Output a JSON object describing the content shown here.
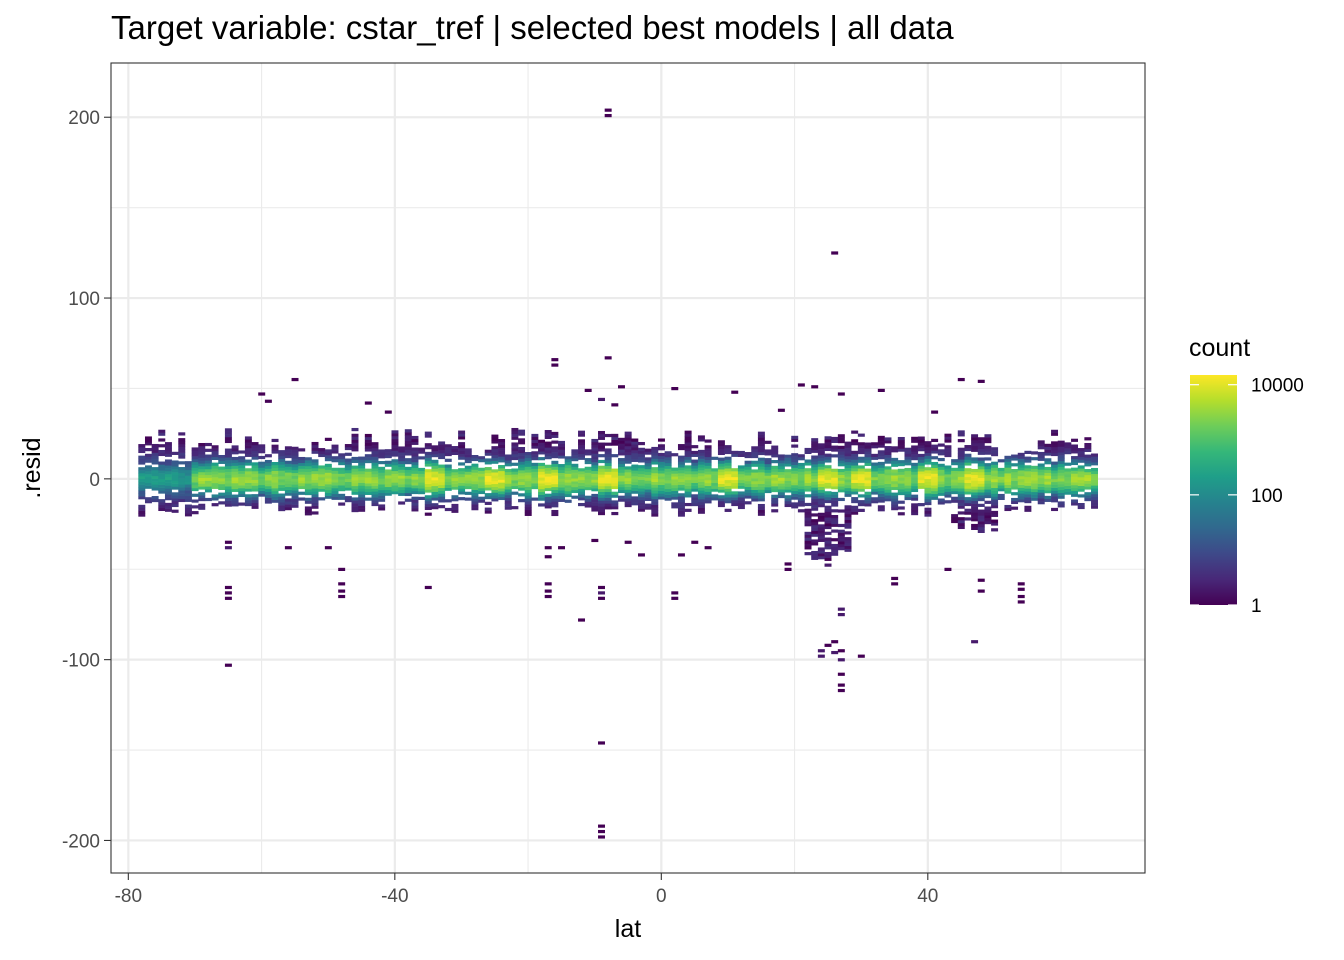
{
  "chart_data": {
    "type": "heatmap",
    "title": "Target variable: cstar_tref | selected best models | all data",
    "xlabel": "lat",
    "ylabel": ".resid",
    "xlim": [
      -82.6,
      72.6
    ],
    "ylim": [
      -218,
      230
    ],
    "x_ticks": [
      -80,
      -40,
      0,
      40
    ],
    "y_ticks": [
      200,
      100,
      0,
      -100,
      -200
    ],
    "x_tick_labels": [
      "-80",
      "-40",
      "0",
      "40"
    ],
    "y_tick_labels": [
      "200",
      "100",
      "0",
      "-100",
      "-200"
    ],
    "grid": true,
    "bin_width": [
      1,
      1.6
    ],
    "data_lat_range": [
      -78,
      65
    ],
    "legend": {
      "title": "count",
      "scale": "log10",
      "range": [
        1,
        15000
      ],
      "breaks": [
        1,
        100,
        10000
      ],
      "break_labels": [
        "1",
        "100",
        "10000"
      ],
      "colors": [
        "#440154",
        "#482878",
        "#3E4989",
        "#31688E",
        "#26828E",
        "#1F9E89",
        "#35B779",
        "#6DCD59",
        "#B4DE2C",
        "#FDE725"
      ],
      "placement": "right"
    },
    "outliers": [
      [
        -8,
        204,
        1
      ],
      [
        -8,
        201,
        1
      ],
      [
        26,
        125,
        1
      ],
      [
        -16,
        66,
        1
      ],
      [
        -16,
        63,
        1
      ],
      [
        -8,
        67,
        1
      ],
      [
        -55,
        55,
        1
      ],
      [
        -60,
        47,
        1
      ],
      [
        -59,
        43,
        1
      ],
      [
        -44,
        42,
        1
      ],
      [
        -41,
        37,
        1
      ],
      [
        21,
        52,
        1
      ],
      [
        23,
        51,
        1
      ],
      [
        27,
        47,
        1
      ],
      [
        33,
        49,
        1
      ],
      [
        45,
        55,
        1
      ],
      [
        48,
        54,
        1
      ],
      [
        -11,
        49,
        1
      ],
      [
        -6,
        51,
        1
      ],
      [
        2,
        50,
        1
      ],
      [
        11,
        48,
        1
      ],
      [
        -9,
        44,
        2
      ],
      [
        -7,
        41,
        1
      ],
      [
        18,
        38,
        1
      ],
      [
        41,
        37,
        1
      ],
      [
        -65,
        -35,
        1
      ],
      [
        -65,
        -38,
        2
      ],
      [
        -65,
        -60,
        1
      ],
      [
        -65,
        -63,
        1
      ],
      [
        -65,
        -66,
        1
      ],
      [
        -65,
        -103,
        1
      ],
      [
        -56,
        -38,
        1
      ],
      [
        -50,
        -38,
        1
      ],
      [
        -48,
        -50,
        1
      ],
      [
        -48,
        -58,
        1
      ],
      [
        -48,
        -62,
        1
      ],
      [
        -48,
        -65,
        1
      ],
      [
        -35,
        -60,
        1
      ],
      [
        -17,
        -38,
        1
      ],
      [
        -17,
        -43,
        1
      ],
      [
        -17,
        -58,
        1
      ],
      [
        -17,
        -62,
        1
      ],
      [
        -17,
        -65,
        1
      ],
      [
        -15,
        -38,
        1
      ],
      [
        -10,
        -34,
        1
      ],
      [
        -9,
        -60,
        1
      ],
      [
        -9,
        -63,
        2
      ],
      [
        -9,
        -66,
        1
      ],
      [
        -12,
        -78,
        1
      ],
      [
        -5,
        -35,
        1
      ],
      [
        -3,
        -42,
        1
      ],
      [
        -9,
        -146,
        1
      ],
      [
        -9,
        -192,
        1
      ],
      [
        -9,
        -195,
        1
      ],
      [
        -9,
        -198,
        1
      ],
      [
        3,
        -42,
        1
      ],
      [
        5,
        -35,
        1
      ],
      [
        2,
        -63,
        1
      ],
      [
        2,
        -66,
        1
      ],
      [
        7,
        -38,
        1
      ],
      [
        19,
        -47,
        1
      ],
      [
        19,
        -50,
        1
      ],
      [
        24,
        -95,
        2
      ],
      [
        24,
        -98,
        2
      ],
      [
        25,
        -92,
        1
      ],
      [
        26,
        -90,
        1
      ],
      [
        26,
        -96,
        2
      ],
      [
        27,
        -95,
        1
      ],
      [
        27,
        -100,
        2
      ],
      [
        27,
        -108,
        1
      ],
      [
        27,
        -114,
        1
      ],
      [
        27,
        -117,
        1
      ],
      [
        27,
        -72,
        2
      ],
      [
        27,
        -75,
        2
      ],
      [
        30,
        -98,
        1
      ],
      [
        35,
        -55,
        1
      ],
      [
        35,
        -58,
        1
      ],
      [
        43,
        -50,
        1
      ],
      [
        48,
        -56,
        1
      ],
      [
        48,
        -62,
        1
      ],
      [
        47,
        -90,
        2
      ],
      [
        54,
        -58,
        1
      ],
      [
        54,
        -61,
        1
      ],
      [
        54,
        -65,
        1
      ],
      [
        54,
        -68,
        1
      ]
    ]
  }
}
